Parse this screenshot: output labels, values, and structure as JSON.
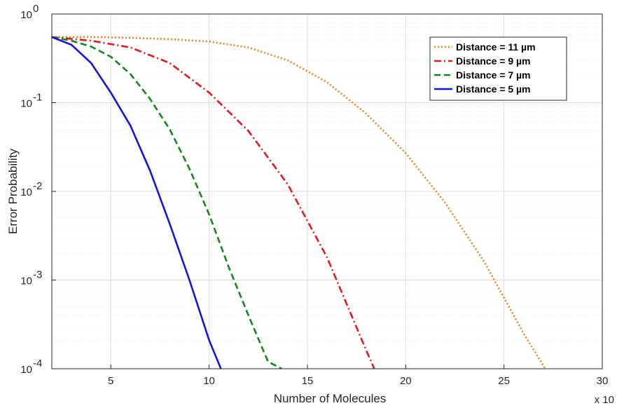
{
  "chart_data": {
    "type": "line",
    "xlabel": "Number of Molecules",
    "ylabel": "Error Probability",
    "x_multiplier_label": "x 10",
    "xlim": [
      2,
      30
    ],
    "ylim": [
      0.0001,
      1
    ],
    "yscale": "log",
    "grid": true,
    "minor_grid": true,
    "legend_position": "top-right",
    "x_ticks": [
      5,
      10,
      15,
      20,
      25,
      30
    ],
    "x_tick_labels": [
      "5",
      "10",
      "15",
      "20",
      "25",
      "30"
    ],
    "y_ticks": [
      0.0001,
      0.001,
      0.01,
      0.1,
      1
    ],
    "y_tick_labels": [
      {
        "base": "10",
        "exp": "-4"
      },
      {
        "base": "10",
        "exp": "-3"
      },
      {
        "base": "10",
        "exp": "-2"
      },
      {
        "base": "10",
        "exp": "-1"
      },
      {
        "base": "10",
        "exp": "0"
      }
    ],
    "series": [
      {
        "name": "Distance = 11 µm",
        "color": "#e8841a",
        "style": "dotted",
        "x": [
          2,
          4,
          6,
          8,
          10,
          12,
          14,
          16,
          18,
          20,
          22,
          24,
          26,
          27.1
        ],
        "y": [
          0.55,
          0.55,
          0.54,
          0.52,
          0.49,
          0.42,
          0.3,
          0.17,
          0.075,
          0.027,
          0.0075,
          0.0016,
          0.00025,
          0.0001
        ]
      },
      {
        "name": "Distance = 9 µm",
        "color": "#e8161c",
        "style": "dashdot",
        "x": [
          2,
          4,
          6,
          8,
          10,
          12,
          14,
          16,
          18,
          18.4
        ],
        "y": [
          0.55,
          0.5,
          0.42,
          0.28,
          0.13,
          0.048,
          0.012,
          0.0018,
          0.00016,
          0.0001
        ]
      },
      {
        "name": "Distance = 7 µm",
        "color": "#11891a",
        "style": "dashed",
        "x": [
          2,
          3,
          4,
          5,
          6,
          7,
          8,
          9,
          10,
          11,
          12,
          13,
          13.7
        ],
        "y": [
          0.55,
          0.5,
          0.43,
          0.33,
          0.21,
          0.11,
          0.05,
          0.018,
          0.0055,
          0.0014,
          0.0004,
          0.00012,
          0.0001
        ]
      },
      {
        "name": "Distance = 5 µm",
        "color": "#1414dc",
        "style": "solid",
        "x": [
          2,
          3,
          4,
          5,
          6,
          7,
          8,
          9,
          10,
          10.6
        ],
        "y": [
          0.55,
          0.45,
          0.28,
          0.13,
          0.055,
          0.017,
          0.0043,
          0.001,
          0.00021,
          0.0001
        ]
      }
    ]
  }
}
